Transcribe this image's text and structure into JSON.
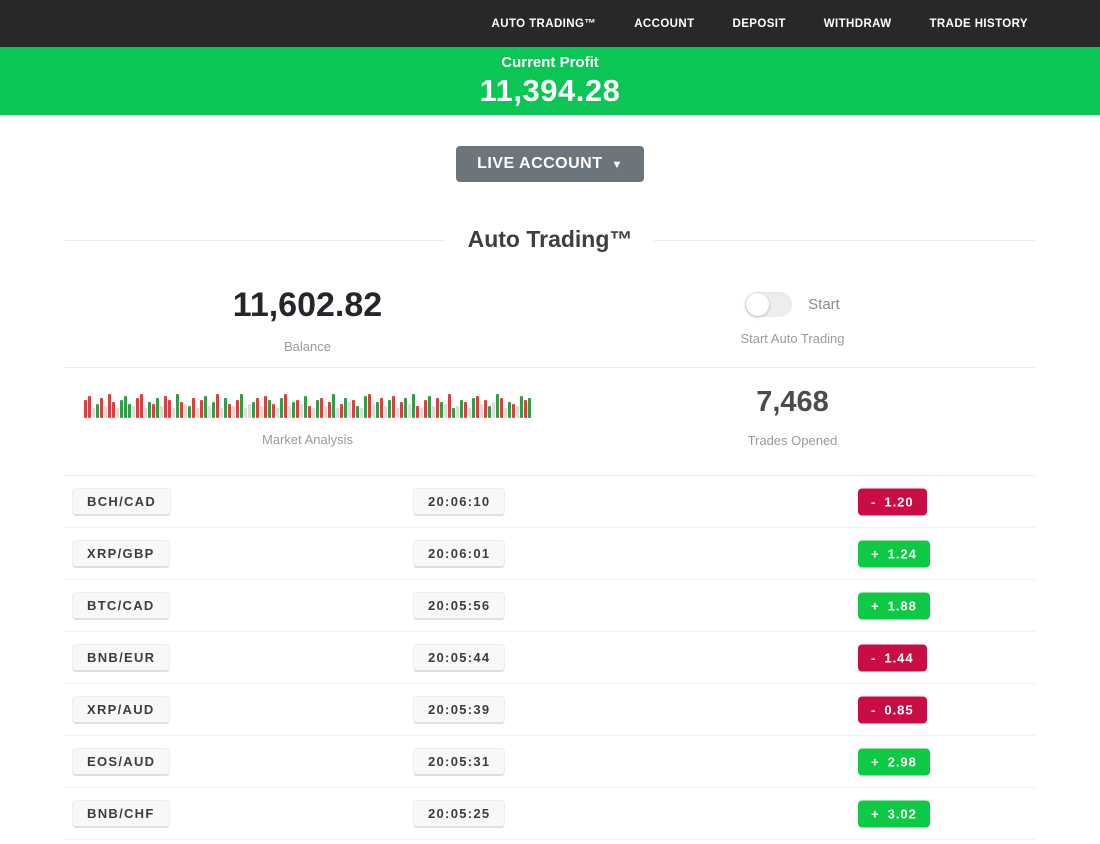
{
  "navbar": {
    "items": [
      {
        "label": "AUTO TRADING™"
      },
      {
        "label": "ACCOUNT"
      },
      {
        "label": "DEPOSIT"
      },
      {
        "label": "WITHDRAW"
      },
      {
        "label": "TRADE HISTORY"
      }
    ]
  },
  "profit_banner": {
    "label": "Current Profit",
    "value": "11,394.28",
    "bg_color": "#0bc554"
  },
  "account_selector": {
    "label": "LIVE ACCOUNT",
    "caret": "▼"
  },
  "section": {
    "title": "Auto Trading™"
  },
  "stats": {
    "balance": {
      "value": "11,602.82",
      "label": "Balance"
    },
    "auto_trading": {
      "toggle_on": false,
      "toggle_label": "Start",
      "label": "Start Auto Trading"
    },
    "market_analysis": {
      "label": "Market Analysis"
    },
    "trades_opened": {
      "value": "7,468",
      "label": "Trades Opened"
    }
  },
  "chart_data": {
    "type": "bar",
    "title": "Market Analysis",
    "note": "decorative mini bar strip; c=r red, g green, n neutral; h=height px",
    "bars": [
      "r18",
      "r22",
      "n10",
      "g14",
      "r20",
      "n12",
      "r24",
      "r16",
      "n10",
      "g18",
      "g22",
      "g14",
      "n12",
      "r20",
      "r24",
      "n10",
      "g16",
      "r14",
      "g20",
      "n12",
      "r22",
      "r18",
      "n10",
      "g24",
      "r16",
      "n14",
      "g12",
      "r20",
      "n10",
      "r18",
      "g22",
      "n12",
      "g16",
      "r24",
      "n10",
      "g20",
      "r14",
      "n12",
      "r18",
      "g24",
      "n10",
      "n14",
      "g16",
      "r20",
      "n12",
      "r22",
      "g18",
      "r14",
      "n10",
      "g20",
      "r24",
      "n12",
      "g16",
      "r18",
      "n14",
      "g22",
      "r12",
      "n10",
      "g18",
      "r20",
      "n12",
      "r16",
      "g24",
      "n10",
      "r14",
      "g20",
      "n16",
      "r18",
      "g12",
      "n10",
      "g22",
      "r24",
      "n14",
      "g16",
      "r20",
      "n12",
      "g18",
      "r22",
      "n10",
      "r16",
      "g20",
      "n14",
      "g24",
      "r12",
      "n10",
      "r18",
      "g22",
      "n12",
      "r20",
      "g16",
      "n14",
      "r24",
      "g10",
      "n12",
      "g18",
      "r16",
      "n10",
      "g20",
      "r22",
      "n14",
      "r18",
      "g12",
      "n16",
      "g24",
      "r20",
      "n10",
      "g16",
      "r14",
      "n12",
      "g22",
      "r18",
      "g20"
    ]
  },
  "trades": [
    {
      "pair": "BCH/CAD",
      "time": "20:06:10",
      "sign": "-",
      "amount": "1.20",
      "direction": "down"
    },
    {
      "pair": "XRP/GBP",
      "time": "20:06:01",
      "sign": "+",
      "amount": "1.24",
      "direction": "up"
    },
    {
      "pair": "BTC/CAD",
      "time": "20:05:56",
      "sign": "+",
      "amount": "1.88",
      "direction": "up"
    },
    {
      "pair": "BNB/EUR",
      "time": "20:05:44",
      "sign": "-",
      "amount": "1.44",
      "direction": "down"
    },
    {
      "pair": "XRP/AUD",
      "time": "20:05:39",
      "sign": "-",
      "amount": "0.85",
      "direction": "down"
    },
    {
      "pair": "EOS/AUD",
      "time": "20:05:31",
      "sign": "+",
      "amount": "2.98",
      "direction": "up"
    },
    {
      "pair": "BNB/CHF",
      "time": "20:05:25",
      "sign": "+",
      "amount": "3.02",
      "direction": "up"
    }
  ],
  "colors": {
    "navbar_bg": "#282828",
    "banner_green": "#0bc554",
    "badge_green": "#0ec944",
    "badge_red": "#c90c43",
    "button_gray": "#6c747c",
    "bar_red": "#e23c3c",
    "bar_green": "#2f9e44",
    "bar_neutral": "#dcdcdc"
  }
}
